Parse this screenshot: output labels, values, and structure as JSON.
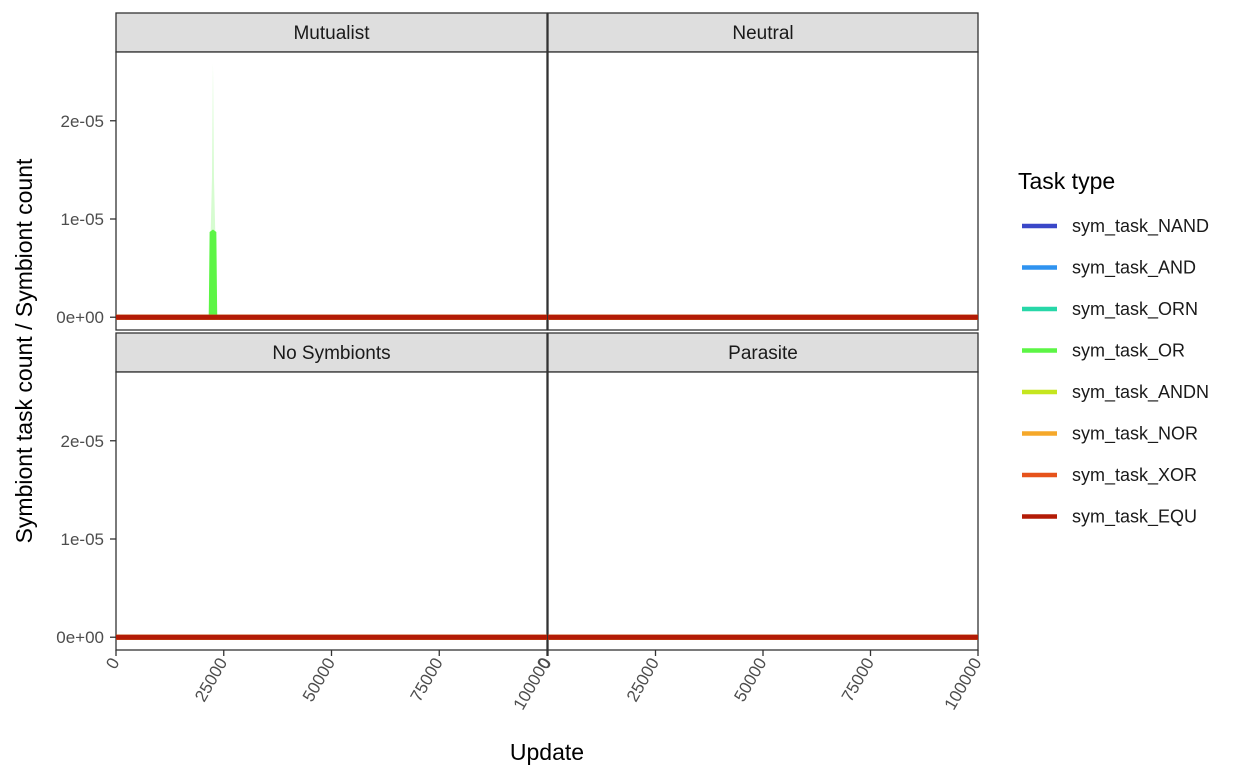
{
  "chart_data": {
    "type": "line",
    "facets": [
      "Mutualist",
      "Neutral",
      "No Symbionts",
      "Parasite"
    ],
    "xlabel": "Update",
    "ylabel": "Symbiont task count / Symbiont count",
    "xlim": [
      0,
      100000
    ],
    "ylim": [
      -1.3e-06,
      2.7e-05
    ],
    "x_ticks": [
      0,
      25000,
      50000,
      75000,
      100000
    ],
    "x_tick_labels": [
      "0",
      "25000",
      "50000",
      "75000",
      "100000"
    ],
    "y_ticks": [
      0,
      1e-05,
      2e-05
    ],
    "y_tick_labels": [
      "0e+00",
      "1e-05",
      "2e-05"
    ],
    "legend_title": "Task type",
    "legend_position": "right",
    "series": [
      {
        "name": "sym_task_NAND",
        "color": "#3a47c8"
      },
      {
        "name": "sym_task_AND",
        "color": "#2f93f0"
      },
      {
        "name": "sym_task_ORN",
        "color": "#27d7a8"
      },
      {
        "name": "sym_task_OR",
        "color": "#5cf545"
      },
      {
        "name": "sym_task_ANDN",
        "color": "#c5e61f"
      },
      {
        "name": "sym_task_NOR",
        "color": "#f5a82a"
      },
      {
        "name": "sym_task_XOR",
        "color": "#e6531b"
      },
      {
        "name": "sym_task_EQU",
        "color": "#b31b06"
      }
    ],
    "baseline": {
      "x": [
        0,
        100000
      ],
      "y": [
        0,
        0
      ]
    },
    "spikes": [
      {
        "facet": "Mutualist",
        "series": "sym_task_OR",
        "x": 22500,
        "peak": 2.58e-05,
        "mean_peak": 8.8e-06,
        "width": 2000
      }
    ]
  }
}
